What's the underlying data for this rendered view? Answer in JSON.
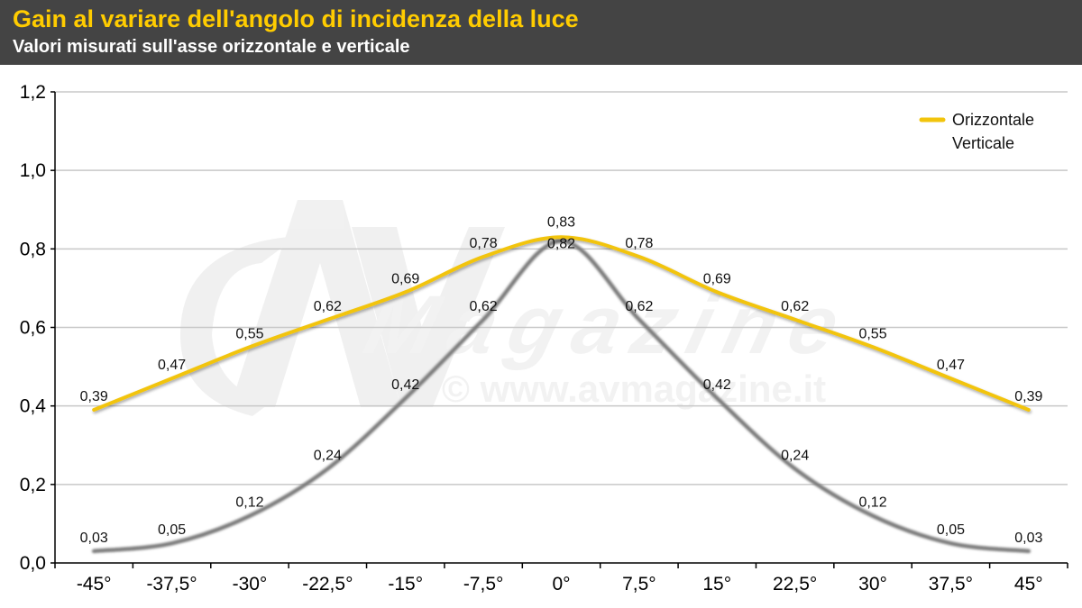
{
  "header": {
    "title": "Gain al variare dell'angolo di incidenza della luce",
    "subtitle": "Valori misurati sull'asse orizzontale e verticale"
  },
  "watermark": {
    "brand": "Magazine",
    "url": "© www.avmagazine.it",
    "logo_icon": "av-logo-icon"
  },
  "colors": {
    "header_bg": "#444444",
    "title": "#ffcc00",
    "orizzontale": "#f2c40c",
    "verticale": "#7a7a7a",
    "grid": "#c8c8c8"
  },
  "chart_data": {
    "type": "line",
    "title": "Gain al variare dell'angolo di incidenza della luce",
    "subtitle": "Valori misurati sull'asse orizzontale e verticale",
    "categories": [
      "-45°",
      "-37,5°",
      "-30°",
      "-22,5°",
      "-15°",
      "-7,5°",
      "0°",
      "7,5°",
      "15°",
      "22,5°",
      "30°",
      "37,5°",
      "45°"
    ],
    "series": [
      {
        "name": "Orizzontale",
        "values": [
          0.39,
          0.47,
          0.55,
          0.62,
          0.69,
          0.78,
          0.83,
          0.78,
          0.69,
          0.62,
          0.55,
          0.47,
          0.39
        ],
        "labels": [
          "0,39",
          "0,47",
          "0,55",
          "0,62",
          "0,69",
          "0,78",
          "0,83",
          "0,78",
          "0,69",
          "0,62",
          "0,55",
          "0,47",
          "0,39"
        ]
      },
      {
        "name": "Verticale",
        "values": [
          0.03,
          0.05,
          0.12,
          0.24,
          0.42,
          0.62,
          0.82,
          0.62,
          0.42,
          0.24,
          0.12,
          0.05,
          0.03
        ],
        "labels": [
          "0,03",
          "0,05",
          "0,12",
          "0,24",
          "0,42",
          "0,62",
          "0,82",
          "0,62",
          "0,42",
          "0,24",
          "0,12",
          "0,05",
          "0,03"
        ]
      }
    ],
    "ylim": [
      0,
      1.2
    ],
    "yticks": [
      0,
      0.2,
      0.4,
      0.6,
      0.8,
      1.0,
      1.2
    ],
    "ytick_labels": [
      "0,0",
      "0,2",
      "0,4",
      "0,6",
      "0,8",
      "1,0",
      "1,2"
    ],
    "grid": true,
    "legend": "top-right"
  }
}
